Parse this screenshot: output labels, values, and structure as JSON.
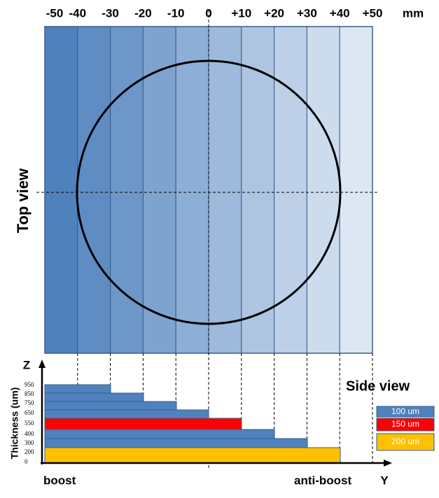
{
  "top_axis": {
    "labels": [
      "-50",
      "-40",
      "-30",
      "-20",
      "-10",
      "0",
      "+10",
      "+20",
      "+30",
      "+40",
      "+50"
    ],
    "unit": "mm"
  },
  "top_view": {
    "label": "Top view"
  },
  "side_view": {
    "title": "Side view",
    "z_label": "Z",
    "y_label": "Y",
    "axis_title": "Thickness (um)",
    "ticks": [
      "950",
      "850",
      "750",
      "650",
      "550",
      "400",
      "300",
      "200",
      "0"
    ],
    "left_label": "boost",
    "right_label": "anti-boost"
  },
  "legend": [
    "100 um",
    "150 um",
    "200 um"
  ]
}
